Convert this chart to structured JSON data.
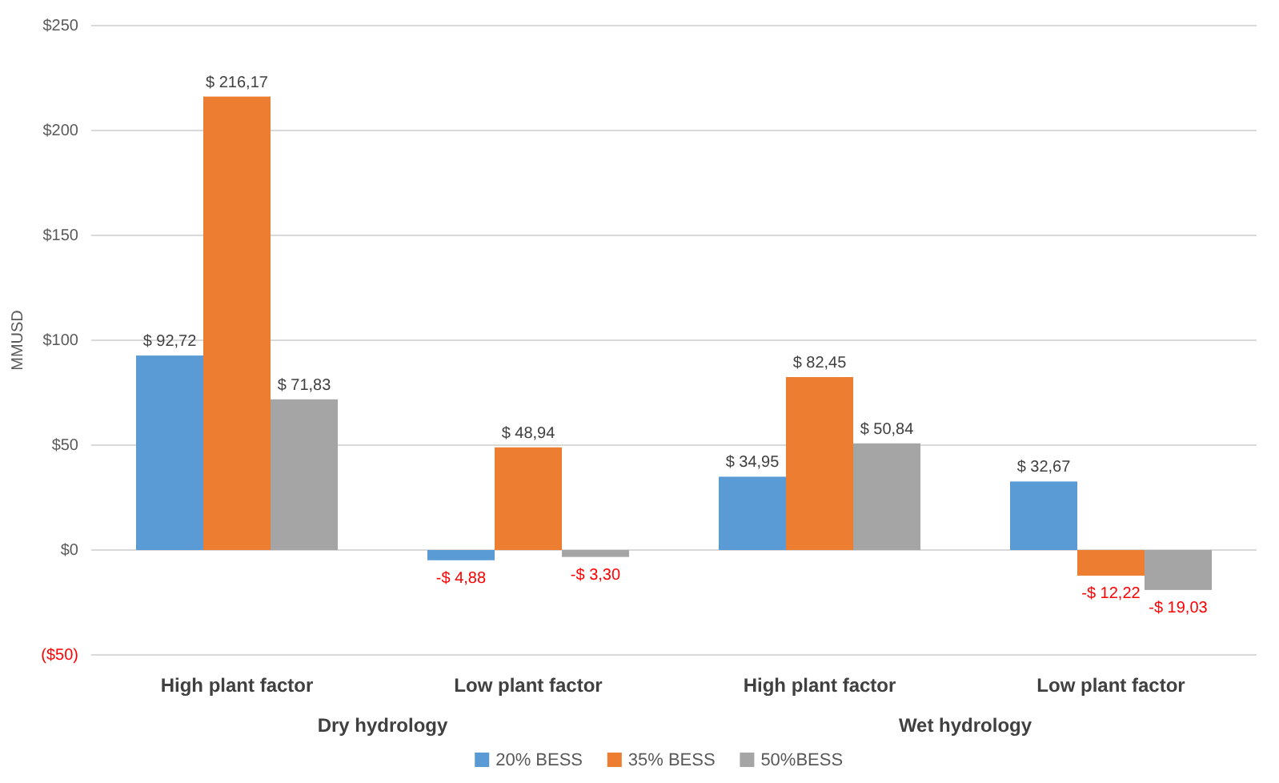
{
  "chart_data": {
    "type": "bar",
    "ylabel": "MMUSD",
    "categories": [
      "High plant factor",
      "Low plant factor",
      "High plant factor",
      "Low plant factor"
    ],
    "annotations": [
      "Dry hydrology",
      "Wet hydrology"
    ],
    "series": [
      {
        "name": "20% BESS",
        "color": "#5b9bd5",
        "values": [
          92.72,
          -4.88,
          34.95,
          32.67
        ],
        "value_labels": [
          "$ 92,72",
          "-$ 4,88",
          "$ 34,95",
          "$ 32,67"
        ]
      },
      {
        "name": "35% BESS",
        "color": "#ed7d31",
        "values": [
          216.17,
          48.94,
          82.45,
          -12.22
        ],
        "value_labels": [
          "$ 216,17",
          "$ 48,94",
          "$ 82,45",
          "-$ 12,22"
        ]
      },
      {
        "name": "50%BESS",
        "color": "#a5a5a5",
        "values": [
          71.83,
          -3.3,
          50.84,
          -19.03
        ],
        "value_labels": [
          "$ 71,83",
          "-$ 3,30",
          "$ 50,84",
          "-$ 19,03"
        ]
      }
    ],
    "ylim": [
      -50,
      250
    ],
    "yticks": [
      {
        "value": -50,
        "label": "($50)"
      },
      {
        "value": 0,
        "label": "$0"
      },
      {
        "value": 50,
        "label": "$50"
      },
      {
        "value": 100,
        "label": "$100"
      },
      {
        "value": 150,
        "label": "$150"
      },
      {
        "value": 200,
        "label": "$200"
      },
      {
        "value": 250,
        "label": "$250"
      }
    ],
    "grid": "y",
    "legend": "bottom"
  }
}
